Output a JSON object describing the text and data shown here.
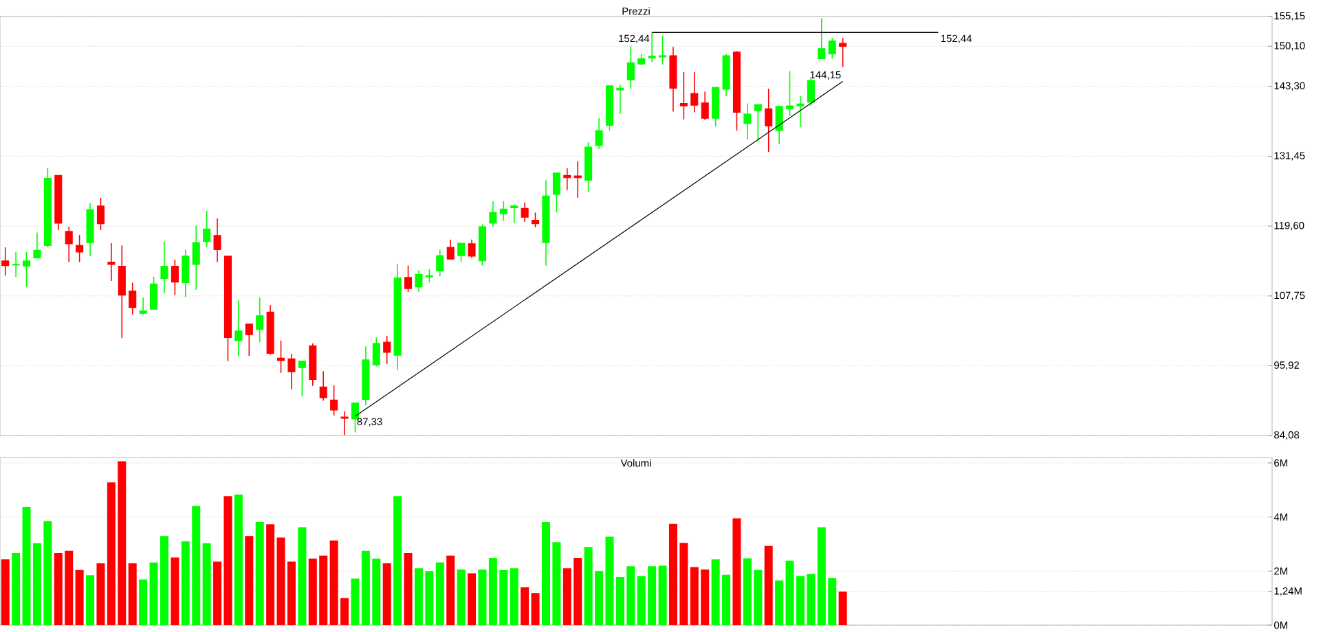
{
  "chart_data": [
    {
      "type": "candlestick",
      "title": "Prezzi",
      "categories": [
        null,
        null,
        null,
        null,
        null,
        null,
        null,
        null,
        null,
        null,
        null,
        null,
        null,
        null,
        null,
        null,
        null,
        null,
        null,
        null,
        null,
        null,
        null,
        null,
        null,
        null,
        null,
        null,
        null,
        null,
        null,
        null,
        null,
        null,
        null,
        null,
        null,
        null,
        null,
        null,
        null,
        null,
        null,
        null,
        null,
        null,
        null,
        null,
        null,
        null,
        null,
        null,
        null,
        null,
        null,
        null,
        null,
        null,
        null,
        null,
        null,
        null,
        null,
        null,
        null,
        null,
        null,
        null,
        null,
        null,
        null,
        null,
        null,
        null,
        null,
        null,
        null,
        null,
        null,
        null,
        null,
        null,
        null,
        null,
        null,
        null,
        null,
        null,
        null,
        null,
        null,
        null,
        null,
        null,
        null,
        null,
        null,
        null,
        null,
        null,
        null,
        null,
        null,
        null,
        null,
        null,
        null,
        null,
        null,
        null,
        null,
        null,
        null,
        null,
        null,
        null,
        null,
        null,
        null,
        null
      ],
      "ohlc": [
        [
          113.7,
          116.0,
          111.2,
          112.9
        ],
        [
          113.0,
          115.2,
          111.0,
          113.1
        ],
        [
          112.8,
          115.2,
          109.3,
          113.7
        ],
        [
          114.2,
          118.5,
          114.2,
          115.5
        ],
        [
          116.3,
          129.5,
          116.0,
          127.7
        ],
        [
          128.2,
          128.2,
          118.9,
          120.1
        ],
        [
          118.7,
          119.5,
          113.5,
          116.6
        ],
        [
          116.3,
          118.1,
          113.5,
          115.2
        ],
        [
          116.8,
          123.5,
          114.5,
          122.4
        ],
        [
          123.0,
          124.4,
          118.9,
          120.0
        ],
        [
          113.5,
          116.7,
          110.3,
          113.1
        ],
        [
          112.8,
          116.3,
          100.6,
          107.9
        ],
        [
          108.6,
          110.0,
          104.6,
          105.8
        ],
        [
          104.8,
          107.5,
          104.6,
          105.2
        ],
        [
          105.5,
          111.0,
          105.5,
          109.8
        ],
        [
          110.7,
          117.0,
          108.2,
          112.8
        ],
        [
          112.8,
          113.9,
          107.9,
          110.1
        ],
        [
          110.0,
          115.6,
          107.6,
          114.5
        ],
        [
          113.1,
          119.7,
          108.8,
          116.8
        ],
        [
          117.0,
          122.2,
          116.0,
          119.1
        ],
        [
          118.0,
          120.9,
          113.5,
          115.6
        ],
        [
          114.5,
          114.5,
          96.7,
          100.7
        ],
        [
          100.2,
          107.0,
          97.5,
          101.8
        ],
        [
          103.0,
          103.0,
          97.6,
          101.2
        ],
        [
          102.1,
          107.5,
          99.9,
          104.4
        ],
        [
          105.0,
          106.2,
          97.8,
          98.0
        ],
        [
          97.2,
          100.2,
          94.7,
          96.8
        ],
        [
          97.1,
          97.9,
          91.9,
          94.9
        ],
        [
          95.6,
          96.7,
          90.7,
          96.7
        ],
        [
          99.3,
          99.7,
          92.5,
          93.6
        ],
        [
          92.3,
          95.0,
          90.0,
          90.5
        ],
        [
          90.1,
          92.6,
          87.5,
          88.4
        ],
        [
          87.2,
          88.2,
          84.2,
          87.0
        ],
        [
          86.9,
          89.6,
          84.6,
          89.6
        ],
        [
          90.2,
          99.2,
          89.2,
          96.9
        ],
        [
          96.1,
          100.7,
          95.8,
          99.7
        ],
        [
          99.9,
          101.0,
          96.2,
          98.2
        ],
        [
          97.7,
          113.2,
          95.2,
          110.8
        ],
        [
          110.9,
          112.9,
          108.4,
          109.0
        ],
        [
          109.3,
          112.1,
          108.5,
          111.4
        ],
        [
          111.0,
          112.3,
          110.1,
          111.2
        ],
        [
          112.0,
          115.6,
          111.1,
          114.6
        ],
        [
          116.0,
          117.3,
          114.0,
          114.0
        ],
        [
          114.6,
          116.7,
          113.5,
          116.7
        ],
        [
          116.6,
          117.3,
          114.2,
          114.5
        ],
        [
          113.7,
          119.9,
          112.9,
          119.5
        ],
        [
          120.1,
          123.8,
          119.4,
          121.9
        ],
        [
          121.7,
          123.8,
          120.5,
          122.5
        ],
        [
          122.7,
          123.3,
          120.1,
          123.0
        ],
        [
          122.6,
          123.6,
          120.3,
          121.1
        ],
        [
          120.6,
          121.9,
          119.4,
          120.0
        ],
        [
          116.8,
          127.4,
          112.9,
          124.7
        ],
        [
          125.0,
          128.6,
          121.9,
          128.6
        ],
        [
          128.2,
          129.4,
          125.7,
          127.8
        ],
        [
          128.1,
          130.6,
          124.4,
          127.8
        ],
        [
          127.4,
          133.8,
          125.4,
          133.0
        ],
        [
          133.3,
          137.9,
          132.7,
          135.8
        ],
        [
          136.7,
          143.4,
          135.8,
          143.4
        ],
        [
          142.7,
          143.6,
          138.6,
          143.0
        ],
        [
          144.4,
          150.1,
          142.9,
          147.3
        ],
        [
          147.1,
          148.8,
          146.9,
          148.0
        ],
        [
          148.1,
          152.44,
          147.4,
          148.4
        ],
        [
          148.3,
          151.9,
          147.0,
          148.5
        ],
        [
          148.5,
          150.0,
          139.0,
          143.0
        ],
        [
          140.4,
          145.7,
          137.7,
          140.0
        ],
        [
          142.1,
          145.7,
          138.9,
          140.1
        ],
        [
          140.5,
          142.4,
          137.6,
          137.9
        ],
        [
          137.9,
          143.1,
          136.5,
          143.1
        ],
        [
          142.8,
          148.8,
          141.6,
          148.5
        ],
        [
          149.1,
          149.3,
          135.8,
          138.9
        ],
        [
          137.0,
          140.4,
          134.3,
          138.6
        ],
        [
          139.2,
          140.2,
          133.9,
          140.2
        ],
        [
          139.5,
          142.9,
          132.2,
          136.6
        ],
        [
          135.8,
          139.9,
          133.5,
          139.9
        ],
        [
          139.5,
          145.9,
          138.3,
          140.0
        ],
        [
          140.0,
          141.7,
          136.4,
          140.3
        ],
        [
          140.6,
          144.8,
          140.0,
          144.3
        ],
        [
          148.0,
          154.9,
          148.0,
          149.7
        ],
        [
          148.8,
          151.5,
          148.0,
          151.0
        ],
        [
          150.6,
          151.5,
          146.6,
          150.1
        ],
        null,
        null,
        null,
        null,
        null,
        null,
        null,
        null,
        null,
        null,
        null,
        null,
        null,
        null,
        null,
        null,
        null,
        null,
        null,
        null,
        null,
        null,
        null,
        null,
        null,
        null,
        null,
        null,
        null,
        null,
        null,
        null,
        null,
        null,
        null,
        null,
        null,
        null,
        null,
        null
      ],
      "colors": [
        "#ff0000",
        "#00ff00",
        "#00ff00",
        "#00ff00",
        "#00ff00",
        "#ff0000",
        "#ff0000",
        "#ff0000",
        "#00ff00",
        "#ff0000",
        "#ff0000",
        "#ff0000",
        "#ff0000",
        "#00ff00",
        "#00ff00",
        "#00ff00",
        "#ff0000",
        "#00ff00",
        "#00ff00",
        "#00ff00",
        "#ff0000",
        "#ff0000",
        "#00ff00",
        "#ff0000",
        "#00ff00",
        "#ff0000",
        "#ff0000",
        "#ff0000",
        "#00ff00",
        "#ff0000",
        "#ff0000",
        "#ff0000",
        "#ff0000",
        "#00ff00",
        "#00ff00",
        "#00ff00",
        "#ff0000",
        "#00ff00",
        "#ff0000",
        "#00ff00",
        "#00ff00",
        "#00ff00",
        "#ff0000",
        "#00ff00",
        "#ff0000",
        "#00ff00",
        "#00ff00",
        "#00ff00",
        "#00ff00",
        "#ff0000",
        "#ff0000",
        "#00ff00",
        "#00ff00",
        "#ff0000",
        "#ff0000",
        "#00ff00",
        "#00ff00",
        "#00ff00",
        "#00ff00",
        "#00ff00",
        "#00ff00",
        "#00ff00",
        "#00ff00",
        "#ff0000",
        "#ff0000",
        "#ff0000",
        "#ff0000",
        "#00ff00",
        "#00ff00",
        "#ff0000",
        "#00ff00",
        "#00ff00",
        "#ff0000",
        "#00ff00",
        "#00ff00",
        "#00ff00",
        "#00ff00",
        "#00ff00",
        "#00ff00",
        "#ff0000",
        null,
        null,
        null,
        null,
        null,
        null,
        null,
        null,
        null,
        null,
        null,
        null,
        null,
        null,
        null,
        null,
        null,
        null,
        null,
        null,
        null,
        null,
        null,
        null,
        null,
        null,
        null,
        null,
        null,
        null,
        null,
        null,
        null,
        null,
        null,
        null,
        null,
        null,
        null,
        null
      ],
      "series": [
        {
          "type": "line",
          "color": "#000000",
          "values": [
            null,
            null,
            null,
            null,
            null,
            null,
            null,
            null,
            null,
            null,
            null,
            null,
            null,
            null,
            null,
            null,
            null,
            null,
            null,
            null,
            null,
            null,
            null,
            null,
            null,
            null,
            null,
            null,
            null,
            null,
            null,
            null,
            null,
            87.33,
            null,
            null,
            null,
            null,
            null,
            null,
            null,
            null,
            null,
            null,
            null,
            null,
            null,
            null,
            null,
            null,
            null,
            null,
            null,
            null,
            null,
            null,
            null,
            null,
            null,
            null,
            null,
            null,
            null,
            null,
            null,
            null,
            null,
            null,
            null,
            null,
            null,
            null,
            null,
            null,
            null,
            null,
            null,
            null,
            null,
            144.15,
            null,
            null,
            null,
            null,
            null,
            null,
            null,
            null,
            null,
            null,
            null,
            null,
            null,
            null,
            null,
            null,
            null,
            null,
            null,
            null,
            null,
            null,
            null,
            null,
            null,
            null,
            null,
            null,
            null,
            null,
            null,
            null,
            null,
            null,
            null,
            null,
            null,
            null,
            null,
            null
          ],
          "value_labels": [
            null,
            null,
            null,
            null,
            null,
            null,
            null,
            null,
            null,
            null,
            null,
            null,
            null,
            null,
            null,
            null,
            null,
            null,
            null,
            null,
            null,
            null,
            null,
            null,
            null,
            null,
            null,
            null,
            null,
            null,
            null,
            null,
            null,
            "87,33",
            null,
            null,
            null,
            null,
            null,
            null,
            null,
            null,
            null,
            null,
            null,
            null,
            null,
            null,
            null,
            null,
            null,
            null,
            null,
            null,
            null,
            null,
            null,
            null,
            null,
            null,
            null,
            null,
            null,
            null,
            null,
            null,
            null,
            null,
            null,
            null,
            null,
            null,
            null,
            null,
            null,
            null,
            null,
            null,
            null,
            "144,15",
            null,
            null,
            null,
            null,
            null,
            null,
            null,
            null,
            null,
            null,
            null,
            null,
            null,
            null,
            null,
            null,
            null,
            null,
            null,
            null,
            null,
            null,
            null,
            null,
            null,
            null,
            null,
            null,
            null,
            null,
            null,
            null,
            null,
            null,
            null,
            null,
            null,
            null,
            null,
            null
          ]
        }
      ],
      "ref_lines": [
        {
          "axis": "y",
          "value": 152.44,
          "label": "152,44"
        }
      ],
      "annotations": [
        "152,44"
      ],
      "ylim": [
        84.08,
        155.15
      ],
      "yticks": [
        {
          "value": 84.08,
          "label": "84,08"
        },
        {
          "value": 95.92,
          "label": "95,92"
        },
        {
          "value": 107.75,
          "label": "107,75"
        },
        {
          "value": 119.6,
          "label": "119,60"
        },
        {
          "value": 131.45,
          "label": "131,45"
        },
        {
          "value": 143.3,
          "label": "143,30"
        },
        {
          "value": 150.1,
          "label": "150,10"
        },
        {
          "value": 155.15,
          "label": "155,15"
        }
      ],
      "grid": "y",
      "tick_labels": "y"
    },
    {
      "type": "bar",
      "title": "Volumi",
      "categories": [
        null,
        null,
        null,
        null,
        null,
        null,
        null,
        null,
        null,
        null,
        null,
        null,
        null,
        null,
        null,
        null,
        null,
        null,
        null,
        null,
        null,
        null,
        null,
        null,
        null,
        null,
        null,
        null,
        null,
        null,
        null,
        null,
        null,
        null,
        null,
        null,
        null,
        null,
        null,
        null,
        null,
        null,
        null,
        null,
        null,
        null,
        null,
        null,
        null,
        null,
        null,
        null,
        null,
        null,
        null,
        null,
        null,
        null,
        null,
        null,
        null,
        null,
        null,
        null,
        null,
        null,
        null,
        null,
        null,
        null,
        null,
        null,
        null,
        null,
        null,
        null,
        null,
        null,
        null,
        null,
        null,
        null,
        null,
        null,
        null,
        null,
        null,
        null,
        null,
        null,
        null,
        null,
        null,
        null,
        null,
        null,
        null,
        null,
        null,
        null,
        null,
        null,
        null,
        null,
        null,
        null,
        null,
        null,
        null,
        null,
        null,
        null,
        null,
        null,
        null,
        null,
        null,
        null,
        null,
        null
      ],
      "values": [
        2.43,
        2.67,
        4.37,
        3.03,
        3.85,
        2.67,
        2.75,
        2.04,
        1.85,
        2.29,
        5.28,
        6.06,
        2.29,
        1.69,
        2.32,
        3.3,
        2.5,
        3.1,
        4.41,
        3.03,
        2.35,
        4.77,
        4.83,
        3.3,
        3.81,
        3.73,
        3.24,
        2.35,
        3.62,
        2.46,
        2.57,
        3.13,
        1.0,
        1.72,
        2.75,
        2.46,
        2.29,
        4.77,
        2.67,
        2.1,
        2.0,
        2.32,
        2.57,
        2.06,
        1.92,
        2.06,
        2.49,
        2.03,
        2.1,
        1.4,
        1.19,
        3.81,
        3.07,
        2.1,
        2.49,
        2.89,
        2.0,
        3.27,
        1.78,
        2.18,
        1.82,
        2.18,
        2.2,
        3.74,
        3.04,
        2.15,
        2.06,
        2.43,
        1.86,
        3.95,
        2.47,
        2.04,
        2.93,
        1.65,
        2.38,
        1.82,
        1.89,
        3.62,
        1.75,
        1.24,
        null,
        null,
        null,
        null,
        null,
        null,
        null,
        null,
        null,
        null,
        null,
        null,
        null,
        null,
        null,
        null,
        null,
        null,
        null,
        null,
        null,
        null,
        null,
        null,
        null,
        null,
        null,
        null,
        null,
        null,
        null,
        null,
        null,
        null,
        null,
        null,
        null,
        null,
        null,
        null
      ],
      "colors": [
        "#ff0000",
        "#00ff00",
        "#00ff00",
        "#00ff00",
        "#00ff00",
        "#ff0000",
        "#ff0000",
        "#ff0000",
        "#00ff00",
        "#ff0000",
        "#ff0000",
        "#ff0000",
        "#ff0000",
        "#00ff00",
        "#00ff00",
        "#00ff00",
        "#ff0000",
        "#00ff00",
        "#00ff00",
        "#00ff00",
        "#ff0000",
        "#ff0000",
        "#00ff00",
        "#ff0000",
        "#00ff00",
        "#ff0000",
        "#ff0000",
        "#ff0000",
        "#00ff00",
        "#ff0000",
        "#ff0000",
        "#ff0000",
        "#ff0000",
        "#00ff00",
        "#00ff00",
        "#00ff00",
        "#ff0000",
        "#00ff00",
        "#ff0000",
        "#00ff00",
        "#00ff00",
        "#00ff00",
        "#ff0000",
        "#00ff00",
        "#ff0000",
        "#00ff00",
        "#00ff00",
        "#00ff00",
        "#00ff00",
        "#ff0000",
        "#ff0000",
        "#00ff00",
        "#00ff00",
        "#ff0000",
        "#ff0000",
        "#00ff00",
        "#00ff00",
        "#00ff00",
        "#00ff00",
        "#00ff00",
        "#00ff00",
        "#00ff00",
        "#00ff00",
        "#ff0000",
        "#ff0000",
        "#ff0000",
        "#ff0000",
        "#00ff00",
        "#00ff00",
        "#ff0000",
        "#00ff00",
        "#00ff00",
        "#ff0000",
        "#00ff00",
        "#00ff00",
        "#00ff00",
        "#00ff00",
        "#00ff00",
        "#00ff00",
        "#ff0000",
        null,
        null,
        null,
        null,
        null,
        null,
        null,
        null,
        null,
        null,
        null,
        null,
        null,
        null,
        null,
        null,
        null,
        null,
        null,
        null,
        null,
        null,
        null,
        null,
        null,
        null,
        null,
        null,
        null,
        null,
        null,
        null,
        null,
        null,
        null,
        null,
        null,
        null,
        null,
        null
      ],
      "ylim": [
        0,
        6.2
      ],
      "yticks": [
        {
          "value": 0,
          "label": "0M"
        },
        {
          "value": 1.24,
          "label": "1,24M"
        },
        {
          "value": 2,
          "label": "2M"
        },
        {
          "value": 4,
          "label": "4M"
        },
        {
          "value": 6,
          "label": "6M"
        }
      ],
      "grid": "y",
      "tick_labels": "y"
    }
  ]
}
